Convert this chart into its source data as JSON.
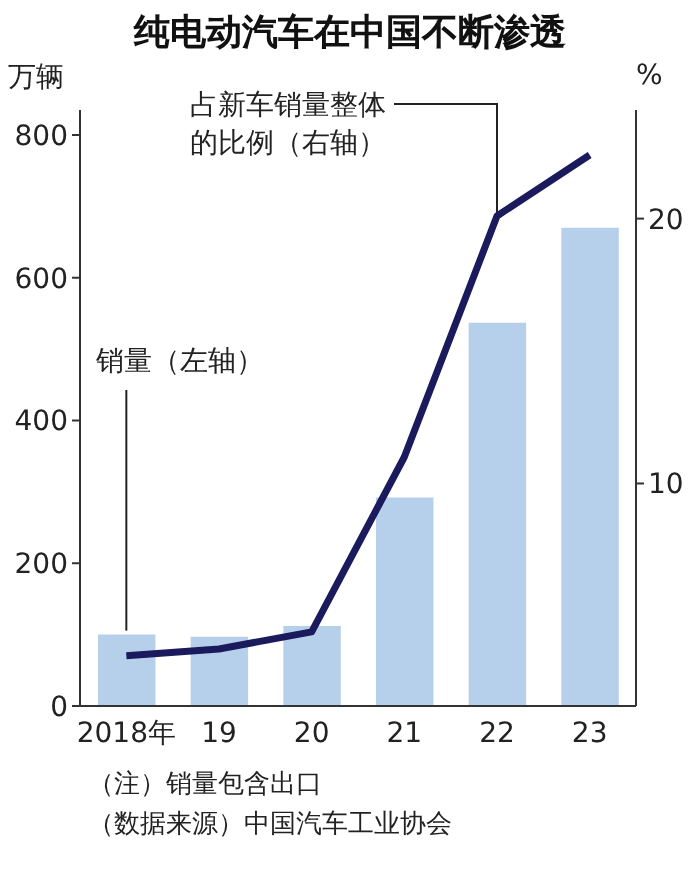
{
  "chart_data": {
    "type": "bar",
    "title": "纯电动汽车在中国不断渗透",
    "ylabel": "万辆",
    "y2label": "%",
    "categories": [
      "2018年",
      "19",
      "20",
      "21",
      "22",
      "23"
    ],
    "series": [
      {
        "name": "销量（左轴）",
        "color": "#b6d0ec",
        "values": [
          100,
          97,
          112,
          292,
          537,
          670
        ]
      },
      {
        "name": "占新车销量整体的比例（右轴）",
        "type": "line",
        "axis": "y2",
        "color": "#1b1a5c",
        "values": [
          3.5,
          3.75,
          4.4,
          11.0,
          20.1,
          22.4
        ]
      }
    ],
    "ylim": [
      0,
      835
    ],
    "yticks": [
      0,
      200,
      400,
      600,
      800
    ],
    "y2lim": [
      1.6,
      24.1
    ],
    "y2ticks": [
      10,
      20
    ],
    "grid": false,
    "marker": "none",
    "line_style": "solid",
    "annotations": [
      "（注）销量包含出口",
      "（数据来源）中国汽车工业协会"
    ]
  }
}
